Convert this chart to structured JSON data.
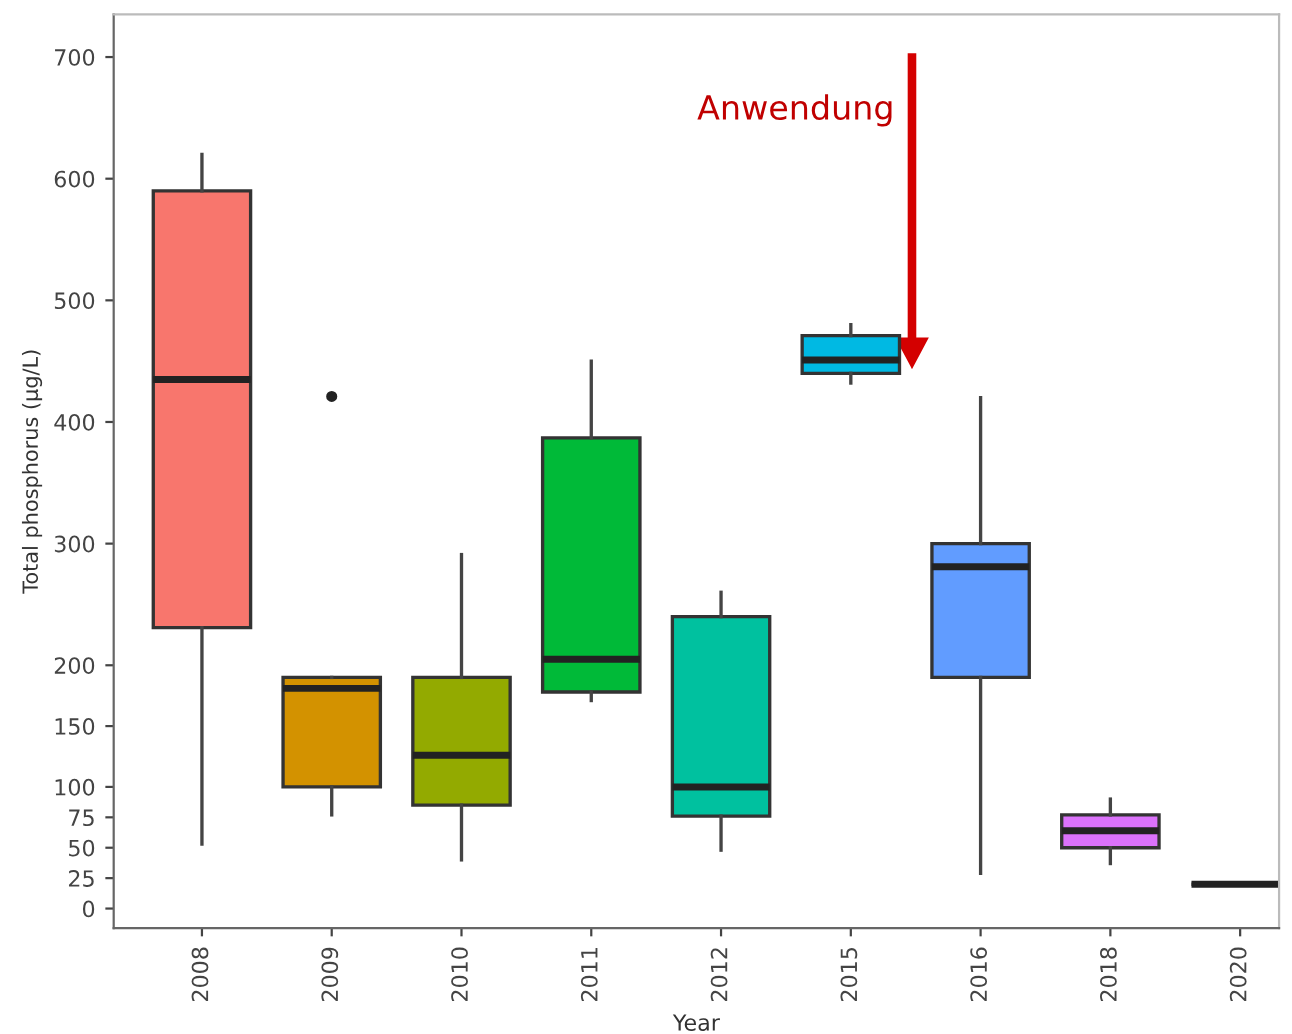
{
  "chart_data": {
    "type": "box",
    "xlabel": "Year",
    "ylabel": "Total phosphorus (µg/L)",
    "categories": [
      "2008",
      "2009",
      "2010",
      "2011",
      "2012",
      "2015",
      "2016",
      "2018",
      "2020"
    ],
    "colors": [
      "#f8766d",
      "#d39200",
      "#93aa00",
      "#00ba38",
      "#00c19f",
      "#00b9e3",
      "#619cff",
      "#db72fb",
      "#333333"
    ],
    "boxes": [
      {
        "low": 53,
        "q1": 231,
        "median": 435,
        "q3": 590,
        "high": 620
      },
      {
        "low": 77,
        "q1": 100,
        "median": 181,
        "q3": 190,
        "high": 190,
        "outliers": [
          421
        ]
      },
      {
        "low": 40,
        "q1": 85,
        "median": 126,
        "q3": 190,
        "high": 291
      },
      {
        "low": 171,
        "q1": 178,
        "median": 205,
        "q3": 387,
        "high": 450
      },
      {
        "low": 48,
        "q1": 76,
        "median": 100,
        "q3": 240,
        "high": 260
      },
      {
        "low": 432,
        "q1": 440,
        "median": 451,
        "q3": 471,
        "high": 480
      },
      {
        "low": 29,
        "q1": 190,
        "median": 281,
        "q3": 300,
        "high": 420
      },
      {
        "low": 37,
        "q1": 50,
        "median": 64,
        "q3": 77,
        "high": 90
      },
      {
        "low": 20,
        "q1": 20,
        "median": 20,
        "q3": 20,
        "high": 20
      }
    ],
    "ylim": [
      -16,
      735
    ],
    "yticks": [
      0,
      25,
      50,
      75,
      100,
      150,
      200,
      300,
      400,
      500,
      600,
      700
    ],
    "grid": false,
    "legend": false,
    "annotations": [
      "Anwendung"
    ]
  }
}
